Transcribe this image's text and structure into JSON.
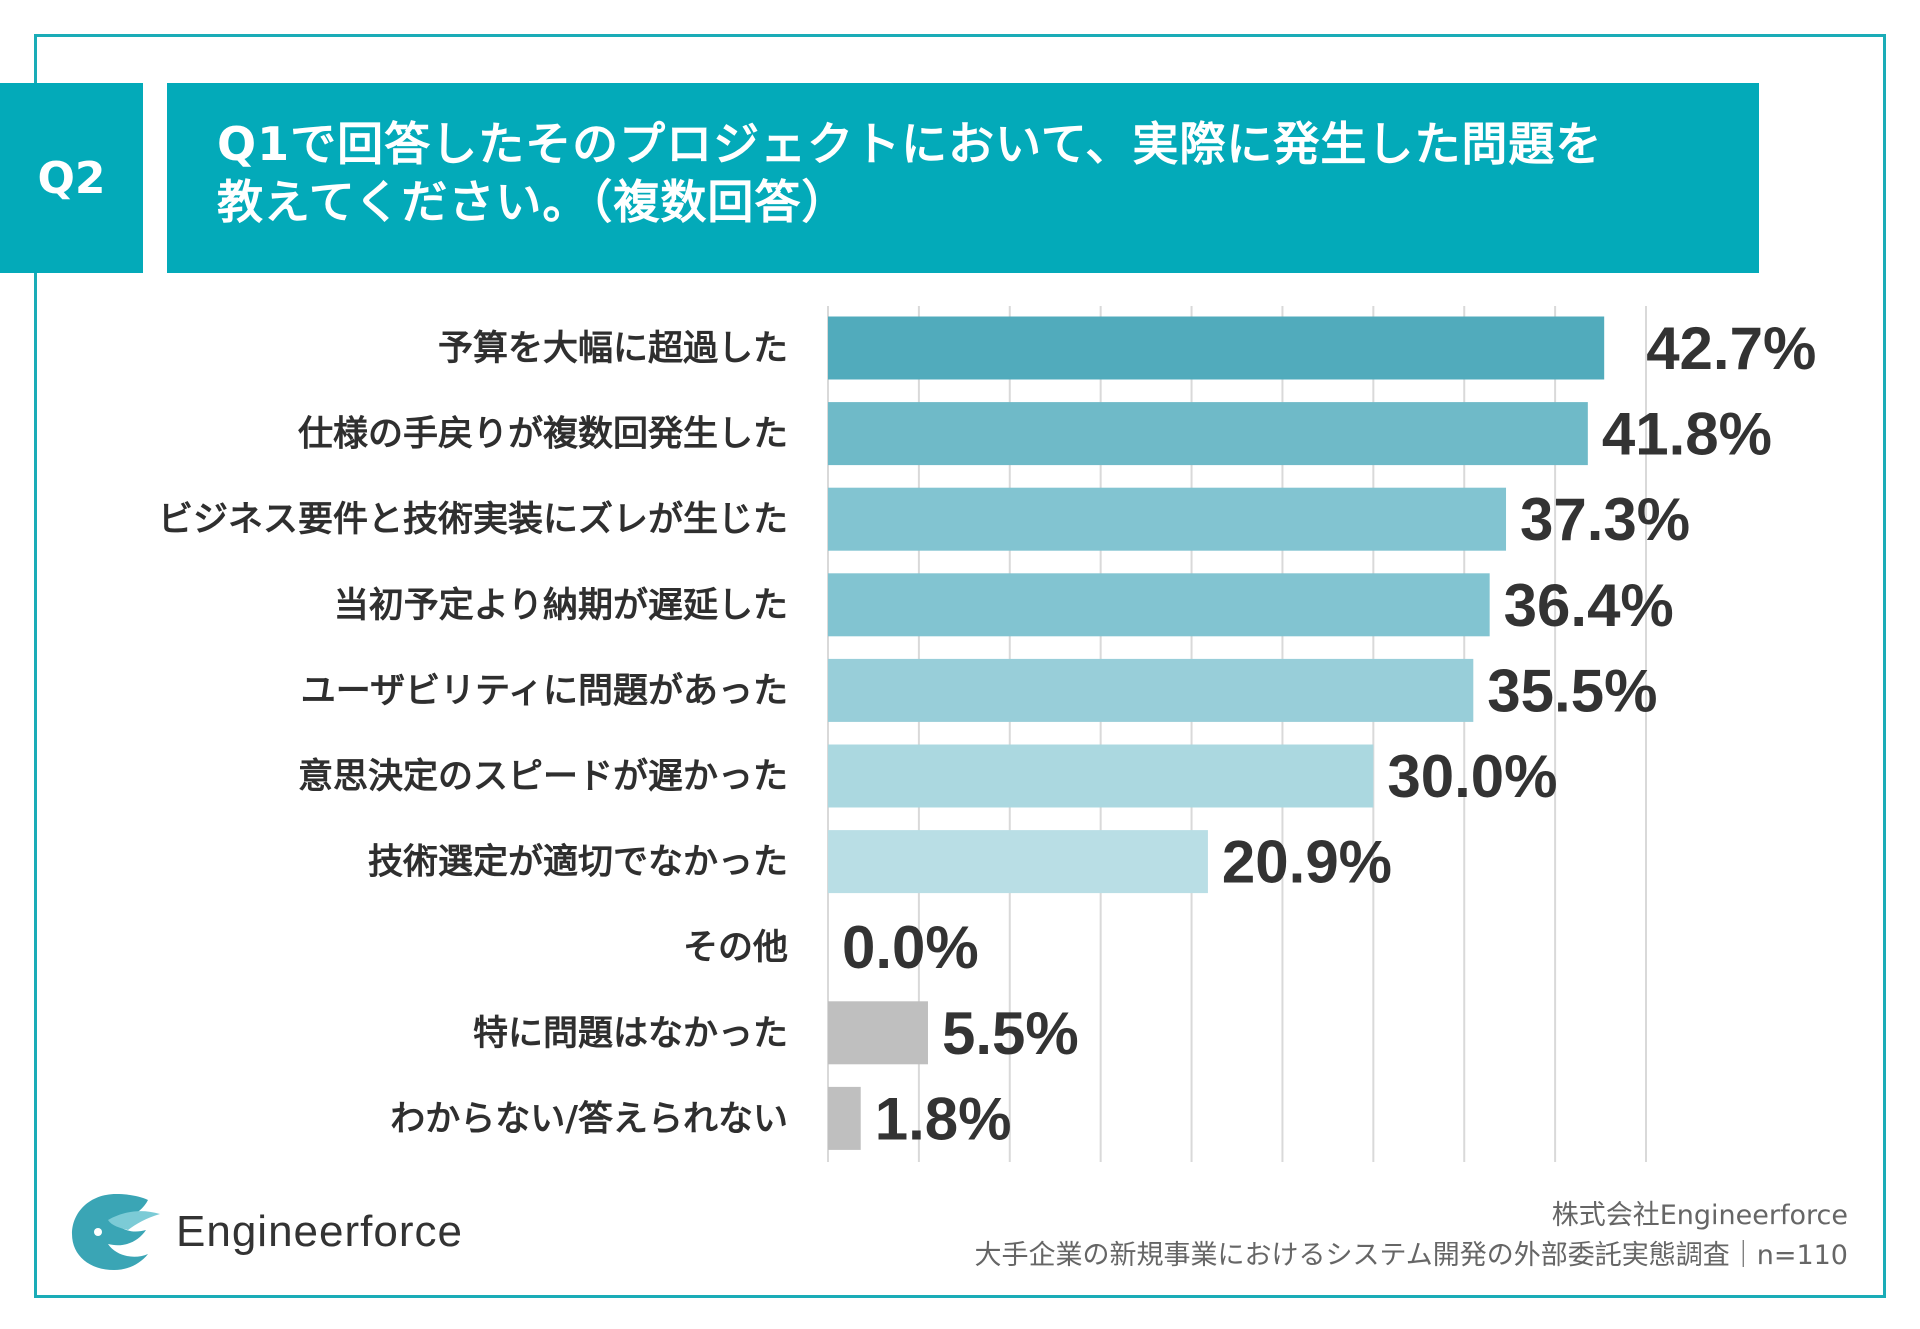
{
  "header": {
    "badge": "Q2",
    "title_line1": "Q1で回答したそのプロジェクトにおいて、実際に発生した問題を",
    "title_line2": "教えてください。（複数回答）"
  },
  "colors": {
    "frame": "#1aacb7",
    "header_bg": "#03aab9",
    "grid": "#d9d9d9"
  },
  "chart_data": {
    "type": "bar",
    "orientation": "horizontal",
    "title": "Q1で回答したそのプロジェクトにおいて、実際に発生した問題を教えてください。（複数回答）",
    "categories": [
      "予算を大幅に超過した",
      "仕様の手戻りが複数回発生した",
      "ビジネス要件と技術実装にズレが生じた",
      "当初予定より納期が遅延した",
      "ユーザビリティに問題があった",
      "意思決定のスピードが遅かった",
      "技術選定が適切でなかった",
      "その他",
      "特に問題はなかった",
      "わからない/答えられない"
    ],
    "values": [
      42.7,
      41.8,
      37.3,
      36.4,
      35.5,
      30.0,
      20.9,
      0.0,
      5.5,
      1.8
    ],
    "value_labels": [
      "42.7%",
      "41.8%",
      "37.3%",
      "36.4%",
      "35.5%",
      "30.0%",
      "20.9%",
      "0.0%",
      "5.5%",
      "1.8%"
    ],
    "bar_colors": [
      "#51abbc",
      "#6fbac8",
      "#82c4d1",
      "#82c4d1",
      "#98ced9",
      "#abd8e0",
      "#b9dee5",
      "#c8e4ea",
      "#bfbfbf",
      "#bfbfbf"
    ],
    "xlim": [
      0,
      45
    ],
    "grid": true,
    "xlabel": "",
    "ylabel": ""
  },
  "footer": {
    "logo_text": "Engineerforce",
    "company": "株式会社Engineerforce",
    "survey": "大手企業の新規事業におけるシステム開発の外部委託実態調査｜n=110"
  }
}
